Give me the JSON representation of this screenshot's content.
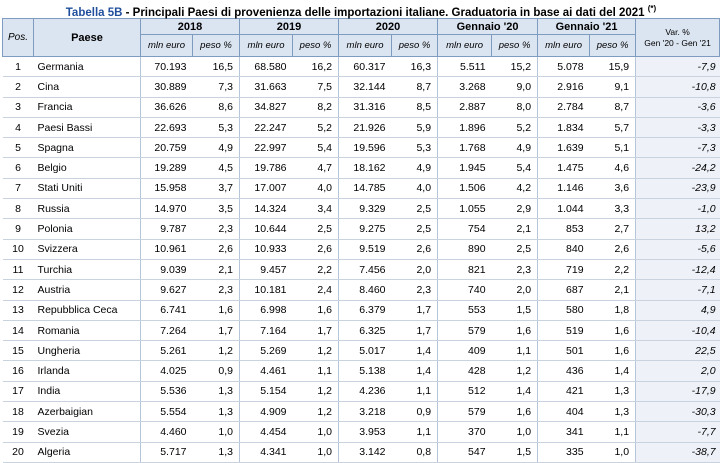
{
  "title": {
    "tag": "Tabella 5B",
    "text": " - Principali Paesi di provenienza delle importazioni italiane. Graduatoria in base ai dati del 2021 ",
    "note": "(*)"
  },
  "headers": {
    "pos": "Pos.",
    "paese": "Paese",
    "periods": [
      "2018",
      "2019",
      "2020",
      "Gennaio '20",
      "Gennaio '21"
    ],
    "sub_value": "mln euro",
    "sub_weight": "peso %",
    "var_line1": "Var. %",
    "var_line2": "Gen '20 - Gen '21"
  },
  "rows": [
    {
      "pos": "1",
      "country": "Germania",
      "v2018": "70.193",
      "p2018": "16,5",
      "v2019": "68.580",
      "p2019": "16,2",
      "v2020": "60.317",
      "p2020": "16,3",
      "vg20": "5.511",
      "pg20": "15,2",
      "vg21": "5.078",
      "pg21": "15,9",
      "var": "-7,9"
    },
    {
      "pos": "2",
      "country": "Cina",
      "v2018": "30.889",
      "p2018": "7,3",
      "v2019": "31.663",
      "p2019": "7,5",
      "v2020": "32.144",
      "p2020": "8,7",
      "vg20": "3.268",
      "pg20": "9,0",
      "vg21": "2.916",
      "pg21": "9,1",
      "var": "-10,8"
    },
    {
      "pos": "3",
      "country": "Francia",
      "v2018": "36.626",
      "p2018": "8,6",
      "v2019": "34.827",
      "p2019": "8,2",
      "v2020": "31.316",
      "p2020": "8,5",
      "vg20": "2.887",
      "pg20": "8,0",
      "vg21": "2.784",
      "pg21": "8,7",
      "var": "-3,6"
    },
    {
      "pos": "4",
      "country": "Paesi Bassi",
      "v2018": "22.693",
      "p2018": "5,3",
      "v2019": "22.247",
      "p2019": "5,2",
      "v2020": "21.926",
      "p2020": "5,9",
      "vg20": "1.896",
      "pg20": "5,2",
      "vg21": "1.834",
      "pg21": "5,7",
      "var": "-3,3"
    },
    {
      "pos": "5",
      "country": "Spagna",
      "v2018": "20.759",
      "p2018": "4,9",
      "v2019": "22.997",
      "p2019": "5,4",
      "v2020": "19.596",
      "p2020": "5,3",
      "vg20": "1.768",
      "pg20": "4,9",
      "vg21": "1.639",
      "pg21": "5,1",
      "var": "-7,3"
    },
    {
      "pos": "6",
      "country": "Belgio",
      "v2018": "19.289",
      "p2018": "4,5",
      "v2019": "19.786",
      "p2019": "4,7",
      "v2020": "18.162",
      "p2020": "4,9",
      "vg20": "1.945",
      "pg20": "5,4",
      "vg21": "1.475",
      "pg21": "4,6",
      "var": "-24,2"
    },
    {
      "pos": "7",
      "country": "Stati Uniti",
      "v2018": "15.958",
      "p2018": "3,7",
      "v2019": "17.007",
      "p2019": "4,0",
      "v2020": "14.785",
      "p2020": "4,0",
      "vg20": "1.506",
      "pg20": "4,2",
      "vg21": "1.146",
      "pg21": "3,6",
      "var": "-23,9"
    },
    {
      "pos": "8",
      "country": "Russia",
      "v2018": "14.970",
      "p2018": "3,5",
      "v2019": "14.324",
      "p2019": "3,4",
      "v2020": "9.329",
      "p2020": "2,5",
      "vg20": "1.055",
      "pg20": "2,9",
      "vg21": "1.044",
      "pg21": "3,3",
      "var": "-1,0"
    },
    {
      "pos": "9",
      "country": "Polonia",
      "v2018": "9.787",
      "p2018": "2,3",
      "v2019": "10.644",
      "p2019": "2,5",
      "v2020": "9.275",
      "p2020": "2,5",
      "vg20": "754",
      "pg20": "2,1",
      "vg21": "853",
      "pg21": "2,7",
      "var": "13,2"
    },
    {
      "pos": "10",
      "country": "Svizzera",
      "v2018": "10.961",
      "p2018": "2,6",
      "v2019": "10.933",
      "p2019": "2,6",
      "v2020": "9.519",
      "p2020": "2,6",
      "vg20": "890",
      "pg20": "2,5",
      "vg21": "840",
      "pg21": "2,6",
      "var": "-5,6"
    },
    {
      "pos": "11",
      "country": "Turchia",
      "v2018": "9.039",
      "p2018": "2,1",
      "v2019": "9.457",
      "p2019": "2,2",
      "v2020": "7.456",
      "p2020": "2,0",
      "vg20": "821",
      "pg20": "2,3",
      "vg21": "719",
      "pg21": "2,2",
      "var": "-12,4"
    },
    {
      "pos": "12",
      "country": "Austria",
      "v2018": "9.627",
      "p2018": "2,3",
      "v2019": "10.181",
      "p2019": "2,4",
      "v2020": "8.460",
      "p2020": "2,3",
      "vg20": "740",
      "pg20": "2,0",
      "vg21": "687",
      "pg21": "2,1",
      "var": "-7,1"
    },
    {
      "pos": "13",
      "country": "Repubblica Ceca",
      "v2018": "6.741",
      "p2018": "1,6",
      "v2019": "6.998",
      "p2019": "1,6",
      "v2020": "6.379",
      "p2020": "1,7",
      "vg20": "553",
      "pg20": "1,5",
      "vg21": "580",
      "pg21": "1,8",
      "var": "4,9"
    },
    {
      "pos": "14",
      "country": "Romania",
      "v2018": "7.264",
      "p2018": "1,7",
      "v2019": "7.164",
      "p2019": "1,7",
      "v2020": "6.325",
      "p2020": "1,7",
      "vg20": "579",
      "pg20": "1,6",
      "vg21": "519",
      "pg21": "1,6",
      "var": "-10,4"
    },
    {
      "pos": "15",
      "country": "Ungheria",
      "v2018": "5.261",
      "p2018": "1,2",
      "v2019": "5.269",
      "p2019": "1,2",
      "v2020": "5.017",
      "p2020": "1,4",
      "vg20": "409",
      "pg20": "1,1",
      "vg21": "501",
      "pg21": "1,6",
      "var": "22,5"
    },
    {
      "pos": "16",
      "country": "Irlanda",
      "v2018": "4.025",
      "p2018": "0,9",
      "v2019": "4.461",
      "p2019": "1,1",
      "v2020": "5.138",
      "p2020": "1,4",
      "vg20": "428",
      "pg20": "1,2",
      "vg21": "436",
      "pg21": "1,4",
      "var": "2,0"
    },
    {
      "pos": "17",
      "country": "India",
      "v2018": "5.536",
      "p2018": "1,3",
      "v2019": "5.154",
      "p2019": "1,2",
      "v2020": "4.236",
      "p2020": "1,1",
      "vg20": "512",
      "pg20": "1,4",
      "vg21": "421",
      "pg21": "1,3",
      "var": "-17,9"
    },
    {
      "pos": "18",
      "country": "Azerbaigian",
      "v2018": "5.554",
      "p2018": "1,3",
      "v2019": "4.909",
      "p2019": "1,2",
      "v2020": "3.218",
      "p2020": "0,9",
      "vg20": "579",
      "pg20": "1,6",
      "vg21": "404",
      "pg21": "1,3",
      "var": "-30,3"
    },
    {
      "pos": "19",
      "country": "Svezia",
      "v2018": "4.460",
      "p2018": "1,0",
      "v2019": "4.454",
      "p2019": "1,0",
      "v2020": "3.953",
      "p2020": "1,1",
      "vg20": "370",
      "pg20": "1,0",
      "vg21": "341",
      "pg21": "1,1",
      "var": "-7,7"
    },
    {
      "pos": "20",
      "country": "Algeria",
      "v2018": "5.717",
      "p2018": "1,3",
      "v2019": "4.341",
      "p2019": "1,0",
      "v2020": "3.142",
      "p2020": "0,8",
      "vg20": "547",
      "pg20": "1,5",
      "vg21": "335",
      "pg21": "1,0",
      "var": "-38,7"
    }
  ]
}
